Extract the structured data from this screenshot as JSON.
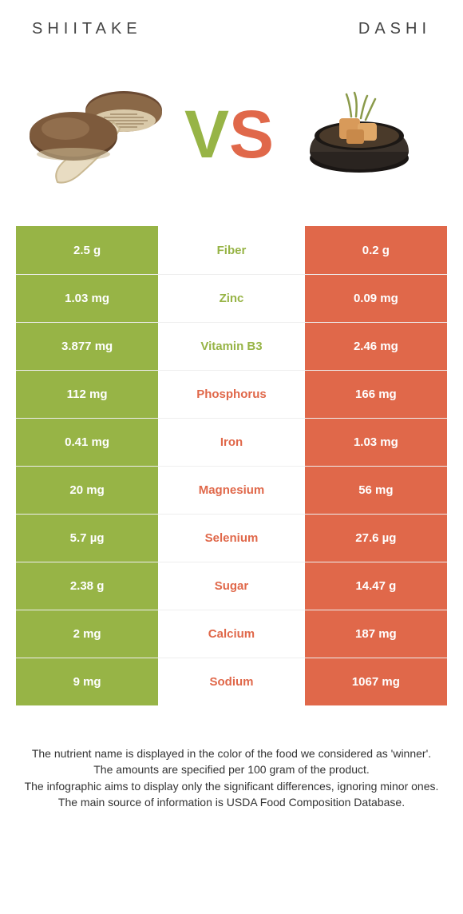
{
  "title_left": "SHIITAKE",
  "title_right": "DASHI",
  "vs_left": "V",
  "vs_right": "S",
  "colors": {
    "green": "#97b446",
    "orange": "#e0684a",
    "text": "#333333",
    "row_border": "#eeeeee",
    "background": "#ffffff"
  },
  "rows": [
    {
      "left": "2.5 g",
      "nutrient": "Fiber",
      "right": "0.2 g",
      "winner": "green"
    },
    {
      "left": "1.03 mg",
      "nutrient": "Zinc",
      "right": "0.09 mg",
      "winner": "green"
    },
    {
      "left": "3.877 mg",
      "nutrient": "Vitamin B3",
      "right": "2.46 mg",
      "winner": "green"
    },
    {
      "left": "112 mg",
      "nutrient": "Phosphorus",
      "right": "166 mg",
      "winner": "orange"
    },
    {
      "left": "0.41 mg",
      "nutrient": "Iron",
      "right": "1.03 mg",
      "winner": "orange"
    },
    {
      "left": "20 mg",
      "nutrient": "Magnesium",
      "right": "56 mg",
      "winner": "orange"
    },
    {
      "left": "5.7 µg",
      "nutrient": "Selenium",
      "right": "27.6 µg",
      "winner": "orange"
    },
    {
      "left": "2.38 g",
      "nutrient": "Sugar",
      "right": "14.47 g",
      "winner": "orange"
    },
    {
      "left": "2 mg",
      "nutrient": "Calcium",
      "right": "187 mg",
      "winner": "orange"
    },
    {
      "left": "9 mg",
      "nutrient": "Sodium",
      "right": "1067 mg",
      "winner": "orange"
    }
  ],
  "footer": {
    "l1": "The nutrient name is displayed in the color of the food we considered as 'winner'.",
    "l2": "The amounts are specified per 100 gram of the product.",
    "l3": "The infographic aims to display only the significant differences, ignoring minor ones.",
    "l4": "The main source of information is USDA Food Composition Database."
  }
}
